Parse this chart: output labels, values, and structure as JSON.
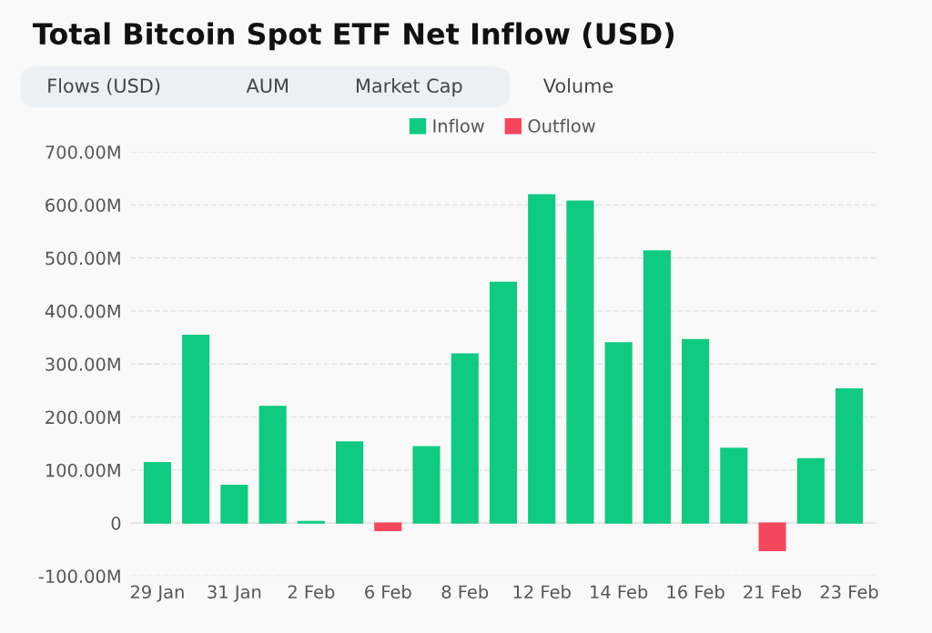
{
  "chart_data": {
    "type": "bar",
    "title": "Total Bitcoin Spot ETF Net Inflow (USD)",
    "annotations": [
      "Flows (USD)",
      "AUM",
      "Market Cap",
      "Volume"
    ],
    "categories": [
      "29 Jan",
      null,
      "31 Jan",
      null,
      "2 Feb",
      null,
      "6 Feb",
      null,
      "8 Feb",
      null,
      "12 Feb",
      null,
      "14 Feb",
      null,
      "16 Feb",
      null,
      "21 Feb",
      null,
      "23 Feb"
    ],
    "series": [
      {
        "name": "Inflow",
        "color": "#0ecb81",
        "values": [
          114,
          354,
          71,
          220,
          3,
          153,
          null,
          144,
          319,
          454,
          619,
          607,
          340,
          513,
          346,
          141,
          null,
          121,
          253
        ]
      },
      {
        "name": "Outflow",
        "color": "#f6465d",
        "values": [
          null,
          null,
          null,
          null,
          null,
          null,
          -14,
          null,
          null,
          null,
          null,
          null,
          null,
          null,
          null,
          null,
          -52,
          null,
          null
        ]
      }
    ],
    "ylim": [
      -100,
      700
    ],
    "yticks": [
      {
        "value": -100,
        "label": "-100.00M"
      },
      0,
      {
        "value": 100,
        "label": "100.00M"
      },
      {
        "value": 200,
        "label": "200.00M"
      },
      {
        "value": 300,
        "label": "300.00M"
      },
      {
        "value": 400,
        "label": "400.00M"
      },
      {
        "value": 500,
        "label": "500.00M"
      },
      {
        "value": 600,
        "label": "600.00M"
      },
      {
        "value": 700,
        "label": "700.00M"
      }
    ],
    "grid": "y",
    "legend": "top"
  }
}
